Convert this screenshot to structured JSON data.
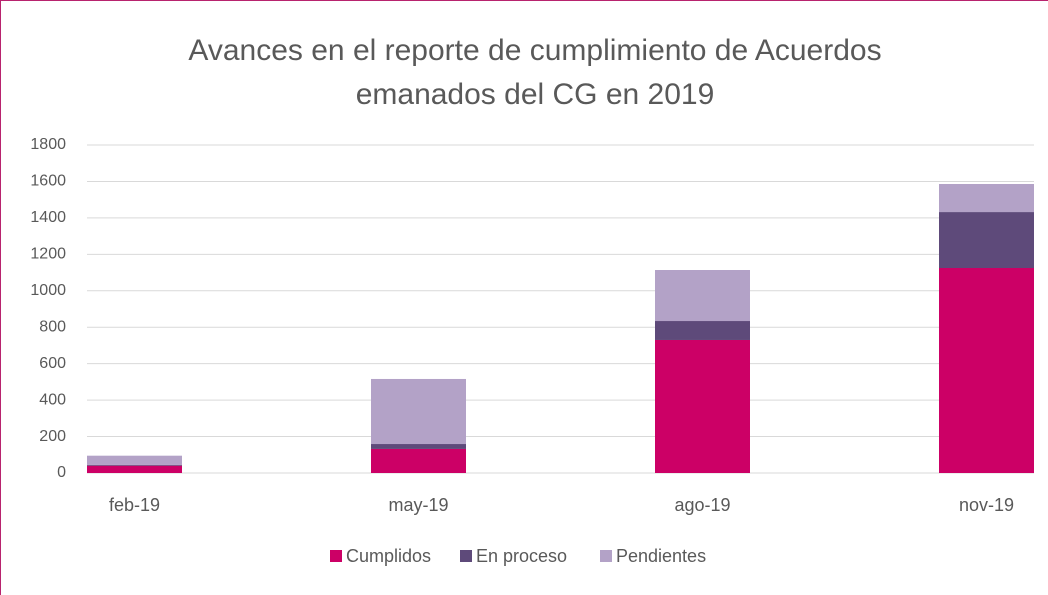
{
  "chart_data": {
    "type": "stacked_bar",
    "title": [
      "Avances en el reporte de cumplimiento de Acuerdos",
      "emanados del CG en 2019"
    ],
    "categories": [
      "feb-19",
      "may-19",
      "ago-19",
      "nov-19"
    ],
    "series": [
      {
        "name": "Cumplidos",
        "color": "#cc0066",
        "values": [
          40,
          132,
          730,
          1125
        ]
      },
      {
        "name": "En proceso",
        "color": "#5e4a7a",
        "values": [
          5,
          27,
          104,
          307
        ]
      },
      {
        "name": "Pendientes",
        "color": "#b3a2c7",
        "values": [
          50,
          357,
          280,
          154
        ]
      }
    ],
    "ylim": [
      0,
      1800
    ],
    "yticks": [
      0,
      200,
      400,
      600,
      800,
      1000,
      1200,
      1400,
      1600,
      1800
    ],
    "grid": true,
    "legend": "bottom"
  }
}
